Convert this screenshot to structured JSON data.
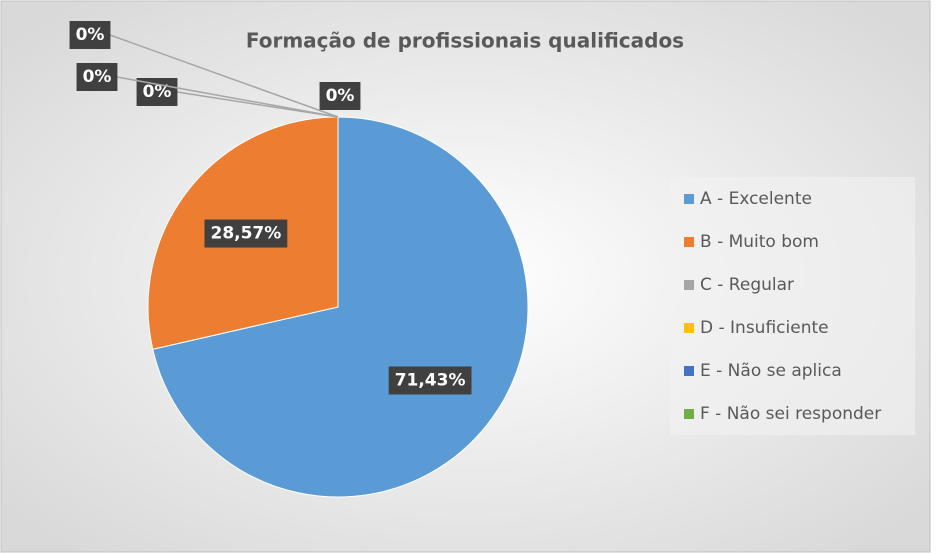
{
  "chart_data": {
    "type": "pie",
    "title": "Formação de profissionais qualificados",
    "categories": [
      "A - Excelente",
      "B - Muito bom",
      "C - Regular",
      "D - Insuficiente",
      "E - Não se aplica",
      "F - Não sei responder"
    ],
    "values": [
      71.43,
      28.57,
      0,
      0,
      0,
      0
    ],
    "value_labels": [
      "71,43%",
      "28,57%",
      "0%",
      "0%",
      "0%",
      "0%"
    ],
    "colors": [
      "#5b9bd5",
      "#ed7d31",
      "#a5a5a5",
      "#ffc000",
      "#4472c4",
      "#70ad47"
    ],
    "legend": "right"
  }
}
